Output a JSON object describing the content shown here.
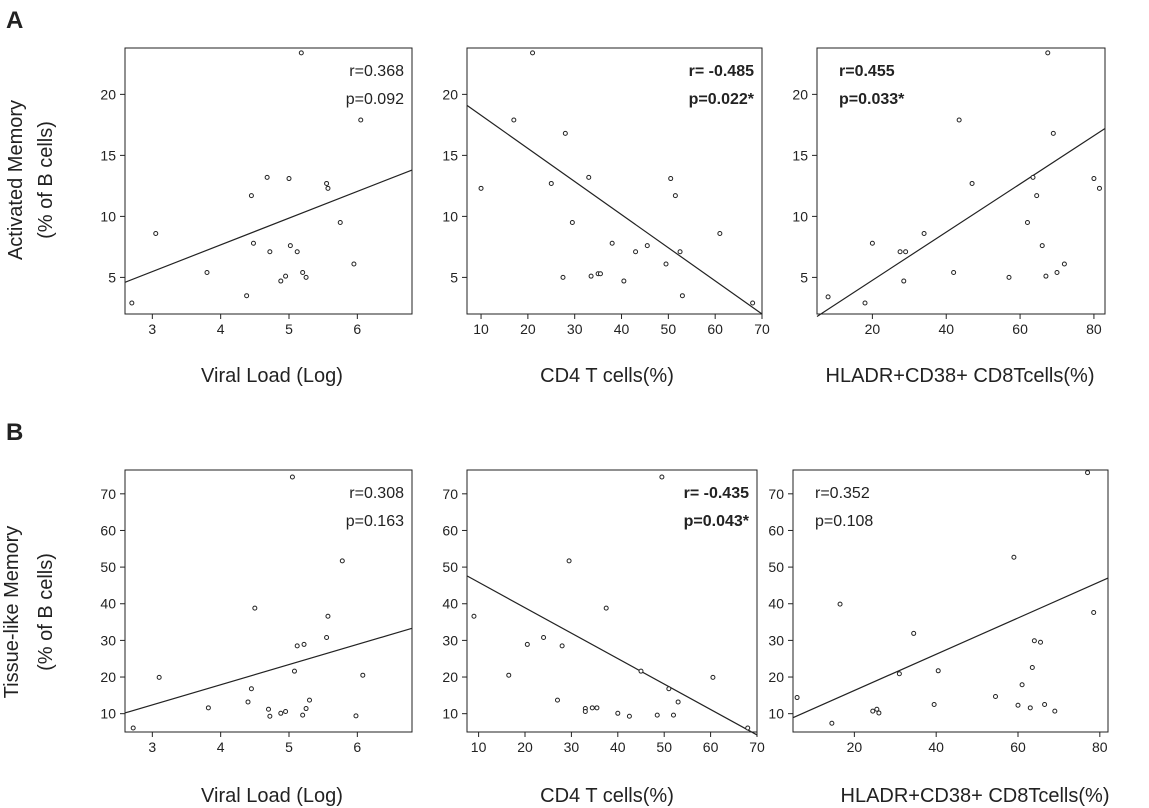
{
  "figure": {
    "panel_letters": [
      "A",
      "B"
    ],
    "row_ylabels": [
      {
        "line1": "Activated Memory",
        "line2": "(% of B cells)"
      },
      {
        "line1": "Tissue-like Memory",
        "line2": "(% of B cells)"
      }
    ]
  },
  "colors": {
    "axis": "#222222",
    "point": "#222222",
    "line": "#222222"
  },
  "chart_data": [
    {
      "type": "scatter",
      "id": "A1",
      "xlabel": "Viral Load (Log)",
      "ylabel": "Activated Memory (% of B cells)",
      "xlim": [
        2.6,
        6.8
      ],
      "ylim": [
        2,
        23.8
      ],
      "xticks": [
        3,
        4,
        5,
        6
      ],
      "yticks": [
        5,
        10,
        15,
        20
      ],
      "stats": {
        "r": "r=0.368",
        "p": "p=0.092",
        "bold": false,
        "corner": "top-right"
      },
      "fit": {
        "x": [
          2.6,
          6.8
        ],
        "y": [
          4.6,
          13.8
        ]
      },
      "points": [
        [
          2.7,
          2.9
        ],
        [
          3.05,
          8.6
        ],
        [
          3.8,
          5.4
        ],
        [
          4.38,
          3.5
        ],
        [
          4.45,
          11.7
        ],
        [
          4.48,
          7.8
        ],
        [
          4.68,
          13.2
        ],
        [
          4.72,
          7.1
        ],
        [
          4.88,
          4.7
        ],
        [
          4.95,
          5.1
        ],
        [
          5.0,
          13.1
        ],
        [
          5.02,
          7.6
        ],
        [
          5.12,
          7.1
        ],
        [
          5.18,
          23.4
        ],
        [
          5.2,
          5.4
        ],
        [
          5.25,
          5.0
        ],
        [
          5.55,
          12.7
        ],
        [
          5.57,
          12.3
        ],
        [
          5.75,
          9.5
        ],
        [
          5.95,
          6.1
        ],
        [
          6.05,
          17.9
        ]
      ]
    },
    {
      "type": "scatter",
      "id": "A2",
      "xlabel": "CD4 T cells(%)",
      "ylabel": "Activated Memory (% of B cells)",
      "xlim": [
        7,
        70
      ],
      "ylim": [
        2,
        23.8
      ],
      "xticks": [
        10,
        20,
        30,
        40,
        50,
        60,
        70
      ],
      "yticks": [
        5,
        10,
        15,
        20
      ],
      "stats": {
        "r": "r= -0.485",
        "p": "p=0.022*",
        "bold": true,
        "corner": "top-right"
      },
      "fit": {
        "x": [
          7,
          70
        ],
        "y": [
          19.1,
          2.0
        ]
      },
      "points": [
        [
          10,
          12.3
        ],
        [
          17,
          17.9
        ],
        [
          21,
          23.4
        ],
        [
          25,
          12.7
        ],
        [
          27.5,
          5.0
        ],
        [
          28,
          16.8
        ],
        [
          29.5,
          9.5
        ],
        [
          33,
          13.2
        ],
        [
          33.5,
          5.1
        ],
        [
          35,
          5.3
        ],
        [
          35.5,
          5.3
        ],
        [
          38,
          7.8
        ],
        [
          40.5,
          4.7
        ],
        [
          43,
          7.1
        ],
        [
          45.5,
          7.6
        ],
        [
          49.5,
          6.1
        ],
        [
          50.5,
          13.1
        ],
        [
          51.5,
          11.7
        ],
        [
          52.5,
          7.1
        ],
        [
          53,
          3.5
        ],
        [
          61,
          8.6
        ],
        [
          68,
          2.9
        ]
      ]
    },
    {
      "type": "scatter",
      "id": "A3",
      "xlabel": "HLADR+CD38+ CD8Tcells(%)",
      "ylabel": "Activated Memory (% of B cells)",
      "xlim": [
        5,
        83
      ],
      "ylim": [
        2,
        23.8
      ],
      "xticks": [
        20,
        40,
        60,
        80
      ],
      "yticks": [
        5,
        10,
        15,
        20
      ],
      "stats": {
        "r": "r=0.455",
        "p": "p=0.033*",
        "bold": true,
        "corner": "top-left"
      },
      "fit": {
        "x": [
          5,
          83
        ],
        "y": [
          1.8,
          17.2
        ]
      },
      "points": [
        [
          8,
          3.4
        ],
        [
          18,
          2.9
        ],
        [
          20,
          7.8
        ],
        [
          27.5,
          7.1
        ],
        [
          28.5,
          4.7
        ],
        [
          29,
          7.1
        ],
        [
          34,
          8.6
        ],
        [
          42,
          5.4
        ],
        [
          43.5,
          17.9
        ],
        [
          47,
          12.7
        ],
        [
          57,
          5.0
        ],
        [
          62,
          9.5
        ],
        [
          63.5,
          13.2
        ],
        [
          64.5,
          11.7
        ],
        [
          66,
          7.6
        ],
        [
          67,
          5.1
        ],
        [
          67.5,
          23.4
        ],
        [
          69,
          16.8
        ],
        [
          70,
          5.4
        ],
        [
          72,
          6.1
        ],
        [
          80,
          13.1
        ],
        [
          81.5,
          12.3
        ]
      ]
    },
    {
      "type": "scatter",
      "id": "B1",
      "xlabel": "Viral Load (Log)",
      "ylabel": "Tissue-like Memory (% of B cells)",
      "xlim": [
        2.6,
        6.8
      ],
      "ylim": [
        5,
        76.5
      ],
      "xticks": [
        3,
        4,
        5,
        6
      ],
      "yticks": [
        10,
        20,
        30,
        40,
        50,
        60,
        70
      ],
      "stats": {
        "r": "r=0.308",
        "p": "p=0.163",
        "bold": false,
        "corner": "top-right"
      },
      "fit": {
        "x": [
          2.6,
          6.8
        ],
        "y": [
          10.2,
          33.3
        ]
      },
      "points": [
        [
          2.72,
          6.1
        ],
        [
          3.1,
          19.9
        ],
        [
          3.82,
          11.6
        ],
        [
          4.4,
          13.2
        ],
        [
          4.45,
          16.8
        ],
        [
          4.5,
          38.8
        ],
        [
          4.7,
          11.2
        ],
        [
          4.72,
          9.3
        ],
        [
          4.88,
          10.1
        ],
        [
          4.95,
          10.6
        ],
        [
          5.05,
          74.6
        ],
        [
          5.08,
          21.6
        ],
        [
          5.12,
          28.5
        ],
        [
          5.2,
          9.6
        ],
        [
          5.22,
          28.9
        ],
        [
          5.25,
          11.4
        ],
        [
          5.3,
          13.7
        ],
        [
          5.55,
          30.8
        ],
        [
          5.57,
          36.6
        ],
        [
          5.78,
          51.7
        ],
        [
          5.98,
          9.4
        ],
        [
          6.08,
          20.5
        ]
      ]
    },
    {
      "type": "scatter",
      "id": "B2",
      "xlabel": "CD4 T cells(%)",
      "ylabel": "Tissue-like Memory (% of B cells)",
      "xlim": [
        7.5,
        70
      ],
      "ylim": [
        5,
        76.5
      ],
      "xticks": [
        10,
        20,
        30,
        40,
        50,
        60,
        70
      ],
      "yticks": [
        10,
        20,
        30,
        40,
        50,
        60,
        70
      ],
      "stats": {
        "r": "r= -0.435",
        "p": "p=0.043*",
        "bold": true,
        "corner": "top-right"
      },
      "fit": {
        "x": [
          7.5,
          70
        ],
        "y": [
          47.6,
          4.2
        ]
      },
      "points": [
        [
          9,
          36.6
        ],
        [
          16.5,
          20.5
        ],
        [
          20.5,
          28.9
        ],
        [
          24,
          30.8
        ],
        [
          27,
          13.7
        ],
        [
          28,
          28.5
        ],
        [
          29.5,
          51.7
        ],
        [
          33,
          11.4
        ],
        [
          33,
          10.6
        ],
        [
          34.5,
          11.6
        ],
        [
          35.5,
          11.6
        ],
        [
          37.5,
          38.8
        ],
        [
          40,
          10.1
        ],
        [
          42.5,
          9.3
        ],
        [
          45,
          21.6
        ],
        [
          48.5,
          9.6
        ],
        [
          49.5,
          74.6
        ],
        [
          51,
          16.8
        ],
        [
          52,
          9.6
        ],
        [
          53,
          13.2
        ],
        [
          60.5,
          19.9
        ],
        [
          68,
          6.1
        ]
      ]
    },
    {
      "type": "scatter",
      "id": "B3",
      "xlabel": "HLADR+CD38+ CD8Tcells(%)",
      "ylabel": "Tissue-like Memory (% of B cells)",
      "xlim": [
        5,
        82
      ],
      "ylim": [
        5,
        76.5
      ],
      "xticks": [
        20,
        40,
        60,
        80
      ],
      "yticks": [
        10,
        20,
        30,
        40,
        50,
        60,
        70
      ],
      "stats": {
        "r": "r=0.352",
        "p": "p=0.108",
        "bold": false,
        "corner": "top-left"
      },
      "fit": {
        "x": [
          5,
          82
        ],
        "y": [
          8.9,
          47.0
        ]
      },
      "points": [
        [
          6,
          14.4
        ],
        [
          14.5,
          7.4
        ],
        [
          16.5,
          39.9
        ],
        [
          24.5,
          10.7
        ],
        [
          25.5,
          11.2
        ],
        [
          26,
          10.2
        ],
        [
          31,
          20.9
        ],
        [
          34.5,
          31.9
        ],
        [
          39.5,
          12.5
        ],
        [
          40.5,
          21.7
        ],
        [
          54.5,
          14.7
        ],
        [
          59,
          52.7
        ],
        [
          60,
          12.3
        ],
        [
          61,
          17.9
        ],
        [
          63,
          11.6
        ],
        [
          63.5,
          22.6
        ],
        [
          64,
          29.9
        ],
        [
          65.5,
          29.5
        ],
        [
          66.5,
          12.5
        ],
        [
          69,
          10.7
        ],
        [
          77,
          75.8
        ],
        [
          78.5,
          37.6
        ]
      ]
    }
  ]
}
